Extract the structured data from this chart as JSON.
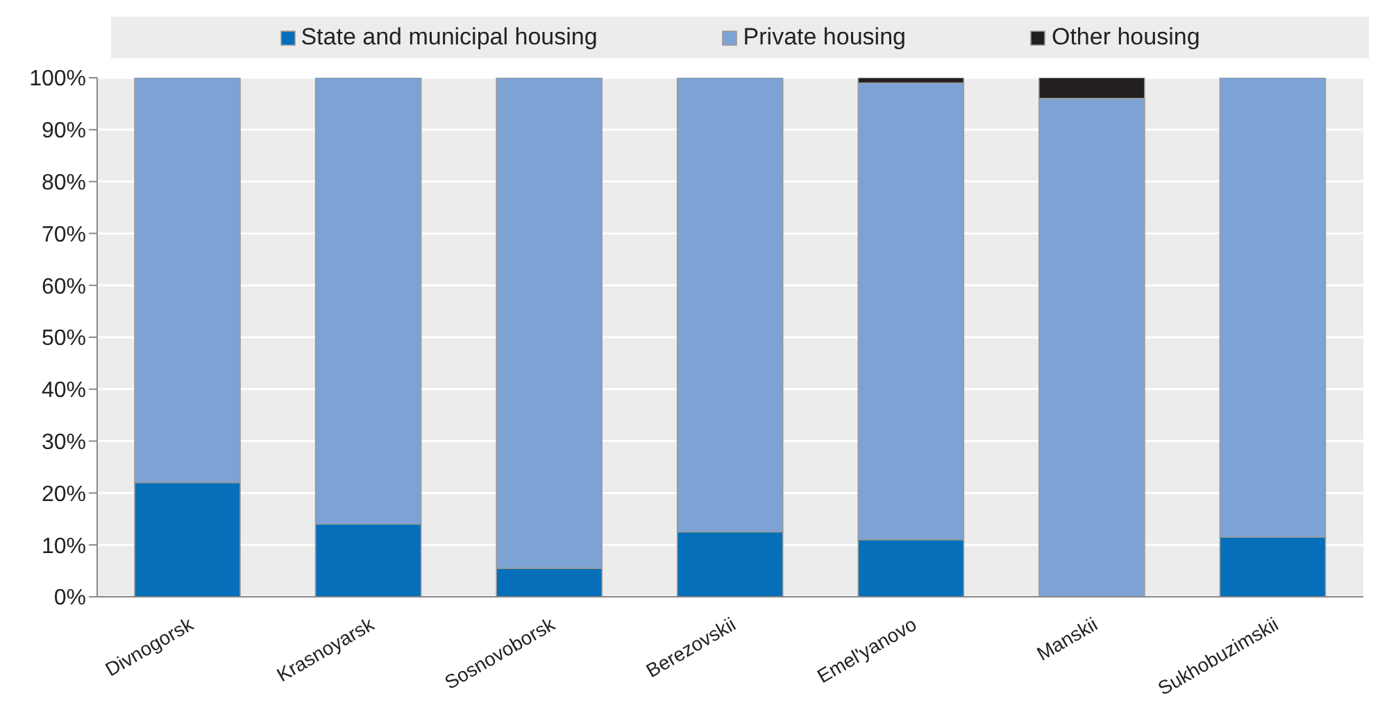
{
  "chart_data": {
    "type": "bar",
    "stacked": true,
    "categories": [
      "Divnogorsk",
      "Krasnoyarsk",
      "Sosnovoborsk",
      "Berezovskii",
      "Emel'yanovo",
      "Manskii",
      "Sukhobuzimskii"
    ],
    "series": [
      {
        "name": "State and municipal housing",
        "color": "#0570b9",
        "values": [
          22,
          14,
          5.5,
          12.5,
          11,
          0,
          11.5
        ]
      },
      {
        "name": "Private housing",
        "color": "#7da3d5",
        "values": [
          78,
          86,
          94.5,
          87.5,
          88,
          96,
          88.5
        ]
      },
      {
        "name": "Other housing",
        "color": "#231f20",
        "values": [
          0,
          0,
          0,
          0,
          1,
          4,
          0
        ]
      }
    ],
    "ylim": [
      0,
      100
    ],
    "yticks": [
      {
        "value": 0,
        "label": "0%"
      },
      {
        "value": 10,
        "label": "10%"
      },
      {
        "value": 20,
        "label": "20%"
      },
      {
        "value": 30,
        "label": "30%"
      },
      {
        "value": 40,
        "label": "40%"
      },
      {
        "value": 50,
        "label": "50%"
      },
      {
        "value": 60,
        "label": "60%"
      },
      {
        "value": 70,
        "label": "70%"
      },
      {
        "value": 80,
        "label": "80%"
      },
      {
        "value": 90,
        "label": "90%"
      },
      {
        "value": 100,
        "label": "100%"
      }
    ],
    "grid": "y",
    "legend": "top"
  }
}
